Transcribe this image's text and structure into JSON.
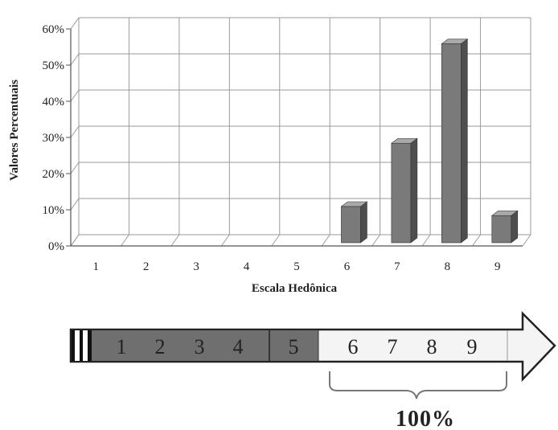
{
  "chart_data": {
    "type": "bar",
    "categories": [
      "1",
      "2",
      "3",
      "4",
      "5",
      "6",
      "7",
      "8",
      "9"
    ],
    "values": [
      0,
      0,
      0,
      0,
      0,
      10,
      27.5,
      55,
      7.5
    ],
    "ylim": [
      0,
      60
    ],
    "yticks": [
      "0%",
      "10%",
      "20%",
      "30%",
      "40%",
      "50%",
      "60%"
    ],
    "xlabel": "Escala Hedônica",
    "ylabel": "Valores Percentuais",
    "grid": true,
    "colors": {
      "bar_front": "#7a7a7a",
      "bar_side": "#4e4e4e",
      "bar_top": "#a9a9a9",
      "grid": "#9a9a9a"
    }
  },
  "scale_bar": {
    "dark_numbers": [
      "1",
      "2",
      "3",
      "4"
    ],
    "mid_number": "5",
    "light_numbers": [
      "6",
      "7",
      "8",
      "9"
    ],
    "total_label": "100%",
    "colors": {
      "dark": "#6f6f6f",
      "light": "#f4f4f4"
    }
  }
}
